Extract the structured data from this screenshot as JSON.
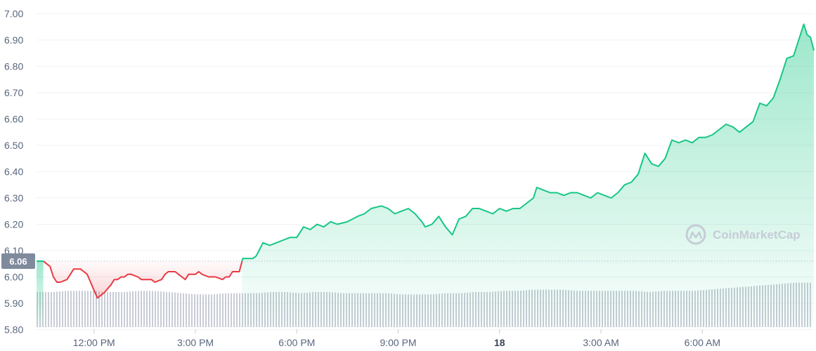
{
  "chart_data": {
    "type": "area",
    "y_axis": {
      "ticks": [
        "7.00",
        "6.90",
        "6.80",
        "6.70",
        "6.60",
        "6.50",
        "6.40",
        "6.30",
        "6.20",
        "6.10",
        "6.00",
        "5.90",
        "5.80"
      ],
      "ylim": [
        5.78,
        7.02
      ],
      "position": "left",
      "grid": true
    },
    "x_axis": {
      "ticks": [
        {
          "label": "12:00 PM",
          "t": 12,
          "bold": false
        },
        {
          "label": "3:00 PM",
          "t": 15,
          "bold": false
        },
        {
          "label": "6:00 PM",
          "t": 18,
          "bold": false
        },
        {
          "label": "9:00 PM",
          "t": 21,
          "bold": false
        },
        {
          "label": "18",
          "t": 24,
          "bold": true
        },
        {
          "label": "3:00 AM",
          "t": 27,
          "bold": false
        },
        {
          "label": "6:00 AM",
          "t": 30,
          "bold": false
        }
      ],
      "range": [
        10.3,
        33.3
      ]
    },
    "reference": {
      "value": 6.06,
      "label": "6.06"
    },
    "colors": {
      "up": "#16c784",
      "down": "#ea3943",
      "volume": "#c8ccd6",
      "grid": "#eff2f5",
      "badge": "#808a9d"
    },
    "watermark": "CoinMarketCap",
    "series": [
      {
        "points": [
          [
            10.3,
            6.06
          ],
          [
            10.5,
            6.06
          ],
          [
            10.6,
            6.05
          ],
          [
            10.7,
            6.04
          ],
          [
            10.8,
            6.0
          ],
          [
            10.9,
            5.98
          ],
          [
            11.0,
            5.98
          ],
          [
            11.2,
            5.99
          ],
          [
            11.3,
            6.01
          ],
          [
            11.4,
            6.03
          ],
          [
            11.6,
            6.03
          ],
          [
            11.7,
            6.02
          ],
          [
            11.8,
            6.01
          ],
          [
            11.9,
            5.98
          ],
          [
            12.0,
            5.95
          ],
          [
            12.1,
            5.92
          ],
          [
            12.2,
            5.93
          ],
          [
            12.3,
            5.94
          ],
          [
            12.5,
            5.97
          ],
          [
            12.6,
            5.99
          ],
          [
            12.7,
            5.99
          ],
          [
            12.8,
            6.0
          ],
          [
            12.9,
            6.0
          ],
          [
            13.0,
            6.01
          ],
          [
            13.1,
            6.01
          ],
          [
            13.3,
            6.0
          ],
          [
            13.4,
            5.99
          ],
          [
            13.5,
            5.99
          ],
          [
            13.7,
            5.99
          ],
          [
            13.8,
            5.98
          ],
          [
            14.0,
            5.99
          ],
          [
            14.1,
            6.01
          ],
          [
            14.2,
            6.02
          ],
          [
            14.4,
            6.02
          ],
          [
            14.5,
            6.01
          ],
          [
            14.6,
            6.0
          ],
          [
            14.7,
            5.99
          ],
          [
            14.8,
            6.01
          ],
          [
            15.0,
            6.01
          ],
          [
            15.1,
            6.02
          ],
          [
            15.2,
            6.01
          ],
          [
            15.4,
            6.0
          ],
          [
            15.5,
            6.0
          ],
          [
            15.6,
            6.0
          ],
          [
            15.8,
            5.99
          ],
          [
            15.9,
            6.0
          ],
          [
            16.0,
            6.0
          ],
          [
            16.1,
            6.02
          ],
          [
            16.3,
            6.02
          ],
          [
            16.4,
            6.07
          ],
          [
            16.5,
            6.07
          ],
          [
            16.7,
            6.07
          ],
          [
            16.8,
            6.08
          ],
          [
            17.0,
            6.13
          ],
          [
            17.2,
            6.12
          ],
          [
            17.4,
            6.13
          ],
          [
            17.6,
            6.14
          ],
          [
            17.8,
            6.15
          ],
          [
            18.0,
            6.15
          ],
          [
            18.2,
            6.19
          ],
          [
            18.4,
            6.18
          ],
          [
            18.6,
            6.2
          ],
          [
            18.8,
            6.19
          ],
          [
            19.0,
            6.21
          ],
          [
            19.2,
            6.2
          ],
          [
            19.5,
            6.21
          ],
          [
            19.8,
            6.23
          ],
          [
            20.0,
            6.24
          ],
          [
            20.2,
            6.26
          ],
          [
            20.5,
            6.27
          ],
          [
            20.7,
            6.26
          ],
          [
            20.9,
            6.24
          ],
          [
            21.1,
            6.25
          ],
          [
            21.3,
            6.26
          ],
          [
            21.5,
            6.24
          ],
          [
            21.7,
            6.21
          ],
          [
            21.8,
            6.19
          ],
          [
            22.0,
            6.2
          ],
          [
            22.2,
            6.23
          ],
          [
            22.4,
            6.19
          ],
          [
            22.6,
            6.16
          ],
          [
            22.8,
            6.22
          ],
          [
            23.0,
            6.23
          ],
          [
            23.2,
            6.26
          ],
          [
            23.4,
            6.26
          ],
          [
            23.6,
            6.25
          ],
          [
            23.8,
            6.24
          ],
          [
            24.0,
            6.26
          ],
          [
            24.2,
            6.25
          ],
          [
            24.4,
            6.26
          ],
          [
            24.6,
            6.26
          ],
          [
            24.8,
            6.28
          ],
          [
            25.0,
            6.3
          ],
          [
            25.1,
            6.34
          ],
          [
            25.3,
            6.33
          ],
          [
            25.5,
            6.32
          ],
          [
            25.7,
            6.32
          ],
          [
            25.9,
            6.31
          ],
          [
            26.1,
            6.32
          ],
          [
            26.3,
            6.32
          ],
          [
            26.5,
            6.31
          ],
          [
            26.7,
            6.3
          ],
          [
            26.9,
            6.32
          ],
          [
            27.1,
            6.31
          ],
          [
            27.3,
            6.3
          ],
          [
            27.5,
            6.32
          ],
          [
            27.7,
            6.35
          ],
          [
            27.9,
            6.36
          ],
          [
            28.1,
            6.39
          ],
          [
            28.3,
            6.47
          ],
          [
            28.5,
            6.43
          ],
          [
            28.7,
            6.42
          ],
          [
            28.9,
            6.45
          ],
          [
            29.1,
            6.52
          ],
          [
            29.3,
            6.51
          ],
          [
            29.5,
            6.52
          ],
          [
            29.7,
            6.51
          ],
          [
            29.9,
            6.53
          ],
          [
            30.1,
            6.53
          ],
          [
            30.3,
            6.54
          ],
          [
            30.5,
            6.56
          ],
          [
            30.7,
            6.58
          ],
          [
            30.9,
            6.57
          ],
          [
            31.1,
            6.55
          ],
          [
            31.3,
            6.57
          ],
          [
            31.5,
            6.59
          ],
          [
            31.7,
            6.66
          ],
          [
            31.9,
            6.65
          ],
          [
            32.1,
            6.68
          ],
          [
            32.3,
            6.75
          ],
          [
            32.5,
            6.83
          ],
          [
            32.7,
            6.84
          ],
          [
            32.9,
            6.92
          ],
          [
            33.0,
            6.96
          ],
          [
            33.1,
            6.92
          ],
          [
            33.2,
            6.91
          ],
          [
            33.3,
            6.86
          ]
        ]
      }
    ],
    "volume": {
      "values": [
        0.3,
        0.3,
        0.31,
        0.31,
        0.31,
        0.3,
        0.3,
        0.31,
        0.31,
        0.3,
        0.29,
        0.28,
        0.28,
        0.29,
        0.29,
        0.29,
        0.3,
        0.3,
        0.29,
        0.3,
        0.3,
        0.29,
        0.29,
        0.29,
        0.29,
        0.28,
        0.28,
        0.28,
        0.29,
        0.29,
        0.3,
        0.3,
        0.31,
        0.31,
        0.32,
        0.32,
        0.32,
        0.31,
        0.31,
        0.31,
        0.31,
        0.31,
        0.3,
        0.31,
        0.31,
        0.31,
        0.32,
        0.33,
        0.34,
        0.35,
        0.36,
        0.37,
        0.38,
        0.38
      ]
    }
  }
}
